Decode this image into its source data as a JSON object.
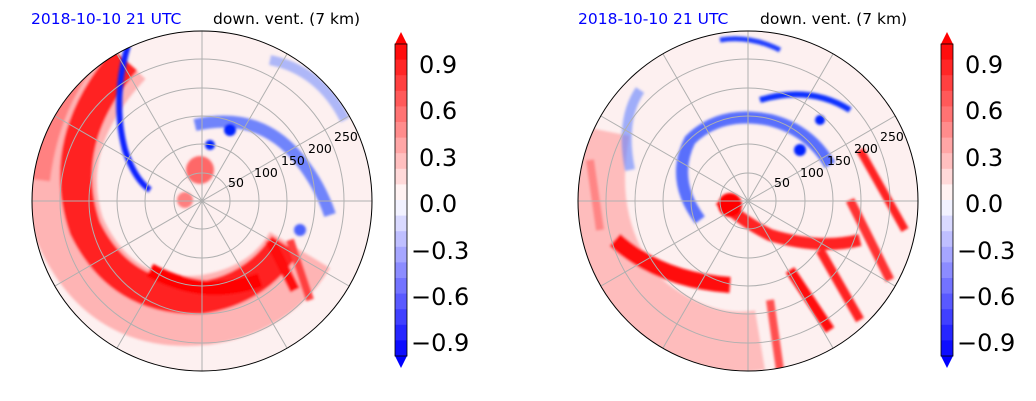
{
  "colors": {
    "title_time": "#0000ff",
    "title_var": "#000000",
    "positive": "#ff0000",
    "negative": "#0000ff",
    "neutral": "#ffffff"
  },
  "chart_data": [
    {
      "type": "heatmap",
      "projection": "polar",
      "title_time": "2018-10-10 21 UTC",
      "title_var": "down. vent. (7 km)",
      "radial_ticks": [
        "50",
        "100",
        "150",
        "200",
        "250"
      ],
      "radial_values": [
        50,
        100,
        150,
        200,
        250
      ],
      "rmax": 300,
      "colorbar": {
        "ticks": [
          "0.9",
          "0.6",
          "0.3",
          "0.0",
          "−0.3",
          "−0.6",
          "−0.9"
        ],
        "vmin": -1.0,
        "vmax": 1.0,
        "extend": "both"
      },
      "features": {
        "red_rainband": "broad spiral arc from north-west through west and south to south-east",
        "blue_band": "narrow arc along inner edge of red band in north-west; patches north-east"
      }
    },
    {
      "type": "heatmap",
      "projection": "polar",
      "title_time": "2018-10-10 21 UTC",
      "title_var": "down. vent. (7 km)",
      "radial_ticks": [
        "50",
        "100",
        "150",
        "200",
        "250"
      ],
      "radial_values": [
        50,
        100,
        150,
        200,
        250
      ],
      "rmax": 300,
      "colorbar": {
        "ticks": [
          "0.9",
          "0.6",
          "0.3",
          "0.0",
          "−0.3",
          "−0.6",
          "−0.9"
        ],
        "vmin": -1.0,
        "vmax": 1.0,
        "extend": "both"
      },
      "features": {
        "red_rainband": "arcs south-west and streaks south-east, near-center red blob",
        "blue_band": "ring north-west around center and patches north"
      }
    }
  ]
}
